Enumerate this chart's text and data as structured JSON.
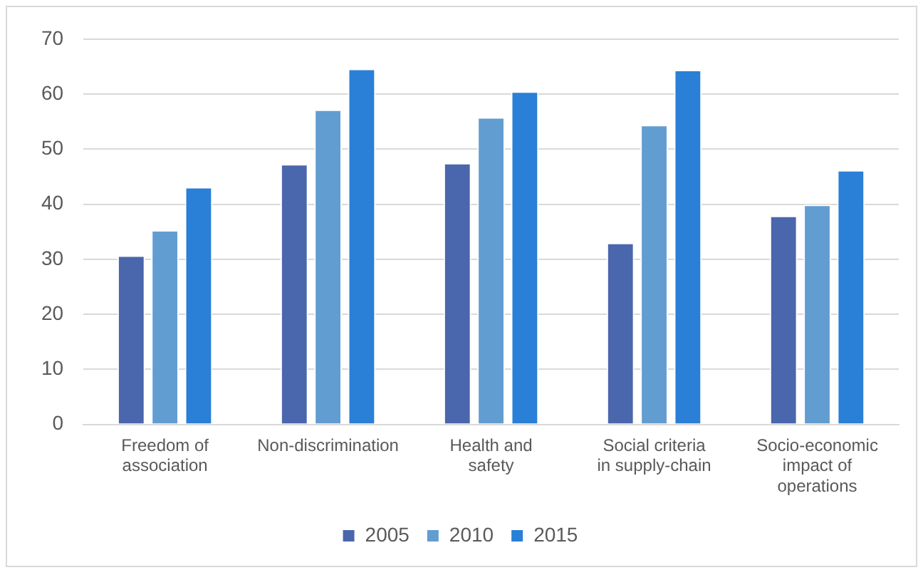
{
  "chart_data": {
    "type": "bar",
    "categories": [
      "Freedom of association",
      "Non-discrimination",
      "Health and safety",
      "Social criteria in supply-chain",
      "Socio-economic impact of operations"
    ],
    "series": [
      {
        "name": "2005",
        "color": "#4a66ac",
        "values": [
          30.7,
          47.3,
          47.5,
          33,
          37.9
        ]
      },
      {
        "name": "2010",
        "color": "#629dd1",
        "values": [
          35.3,
          57.2,
          55.8,
          54.4,
          39.9
        ]
      },
      {
        "name": "2015",
        "color": "#2a7fd6",
        "values": [
          43.1,
          64.6,
          60.5,
          64.4,
          46.2
        ]
      }
    ],
    "ylim": [
      0,
      70
    ],
    "yticks": [
      0,
      10,
      20,
      30,
      40,
      50,
      60,
      70
    ],
    "grid": "y",
    "legend": "bottom"
  }
}
